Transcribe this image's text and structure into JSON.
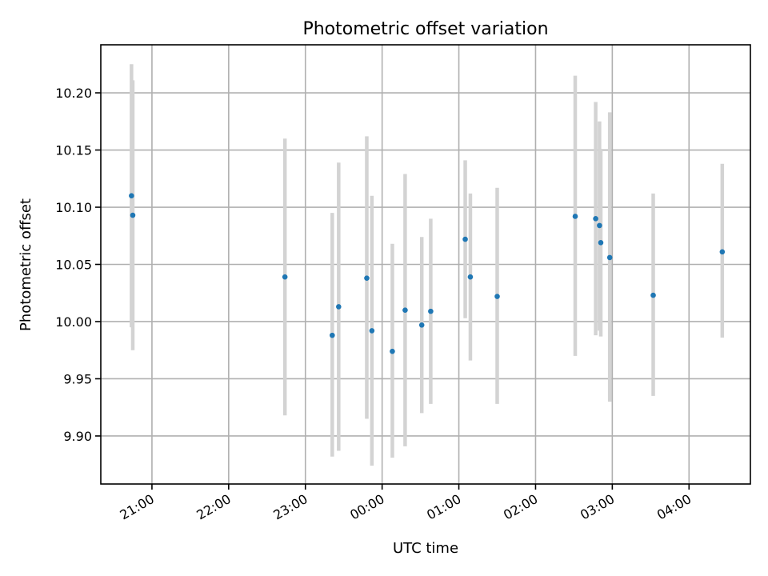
{
  "chart_data": {
    "type": "scatter",
    "title": "Photometric offset variation",
    "xlabel": "UTC time",
    "ylabel": "Photometric offset",
    "grid": true,
    "xlim": [
      "20:20",
      "04:48"
    ],
    "ylim": [
      9.858,
      10.242
    ],
    "x_ticks": [
      "21:00",
      "22:00",
      "23:00",
      "00:00",
      "01:00",
      "02:00",
      "03:00",
      "04:00"
    ],
    "y_ticks": [
      9.9,
      9.95,
      10.0,
      10.05,
      10.1,
      10.15,
      10.2
    ],
    "marker_color": "#1f77b4",
    "errorbar_color": "#d3d3d3",
    "points": [
      {
        "time": "20:44",
        "value": 10.11,
        "low": 9.995,
        "high": 10.225
      },
      {
        "time": "20:45",
        "value": 10.093,
        "low": 9.975,
        "high": 10.211
      },
      {
        "time": "22:44",
        "value": 10.039,
        "low": 9.918,
        "high": 10.16
      },
      {
        "time": "23:21",
        "value": 9.988,
        "low": 9.882,
        "high": 10.095
      },
      {
        "time": "23:26",
        "value": 10.013,
        "low": 9.887,
        "high": 10.139
      },
      {
        "time": "23:48",
        "value": 10.038,
        "low": 9.915,
        "high": 10.162
      },
      {
        "time": "23:52",
        "value": 9.992,
        "low": 9.874,
        "high": 10.11
      },
      {
        "time": "00:08",
        "value": 9.974,
        "low": 9.881,
        "high": 10.068
      },
      {
        "time": "00:18",
        "value": 10.01,
        "low": 9.891,
        "high": 10.129
      },
      {
        "time": "00:31",
        "value": 9.997,
        "low": 9.92,
        "high": 10.074
      },
      {
        "time": "00:38",
        "value": 10.009,
        "low": 9.928,
        "high": 10.09
      },
      {
        "time": "01:05",
        "value": 10.072,
        "low": 10.003,
        "high": 10.141
      },
      {
        "time": "01:09",
        "value": 10.039,
        "low": 9.966,
        "high": 10.112
      },
      {
        "time": "01:30",
        "value": 10.022,
        "low": 9.928,
        "high": 10.117
      },
      {
        "time": "02:31",
        "value": 10.092,
        "low": 9.97,
        "high": 10.215
      },
      {
        "time": "02:47",
        "value": 10.09,
        "low": 9.988,
        "high": 10.192
      },
      {
        "time": "02:50",
        "value": 10.084,
        "low": 9.992,
        "high": 10.175
      },
      {
        "time": "02:51",
        "value": 10.069,
        "low": 9.987,
        "high": 10.151
      },
      {
        "time": "02:58",
        "value": 10.056,
        "low": 9.93,
        "high": 10.183
      },
      {
        "time": "03:32",
        "value": 10.023,
        "low": 9.935,
        "high": 10.112
      },
      {
        "time": "04:26",
        "value": 10.061,
        "low": 9.986,
        "high": 10.138
      }
    ]
  }
}
